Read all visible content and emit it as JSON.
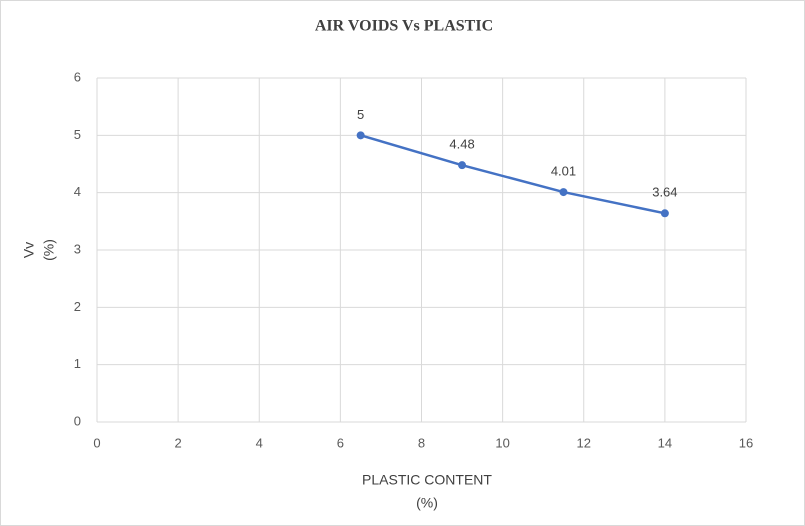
{
  "chart_data": {
    "type": "line",
    "title": "AIR VOIDS Vs PLASTIC",
    "x_label": [
      "PLASTIC CONTENT",
      "(%)"
    ],
    "y_label": [
      "Vv",
      "(%)"
    ],
    "x": [
      6.5,
      9,
      11.5,
      14
    ],
    "series": [
      {
        "name": "Vv",
        "color": "#4472c4",
        "values": [
          5,
          4.48,
          4.01,
          3.64
        ]
      }
    ],
    "xlim": [
      0,
      16
    ],
    "xticks": [
      0,
      2,
      4,
      6,
      8,
      10,
      12,
      14,
      16
    ],
    "ylim": [
      0,
      6
    ],
    "yticks": [
      0,
      1,
      2,
      3,
      4,
      5,
      6
    ],
    "grid": true
  }
}
